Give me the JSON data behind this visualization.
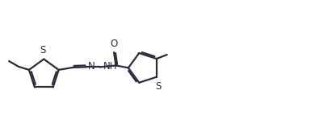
{
  "bg_color": "#ffffff",
  "line_color": "#2b2b3b",
  "line_width": 1.6,
  "figsize": [
    3.9,
    1.53
  ],
  "dpi": 100,
  "xlim": [
    0,
    3.9
  ],
  "ylim": [
    0,
    1.53
  ]
}
